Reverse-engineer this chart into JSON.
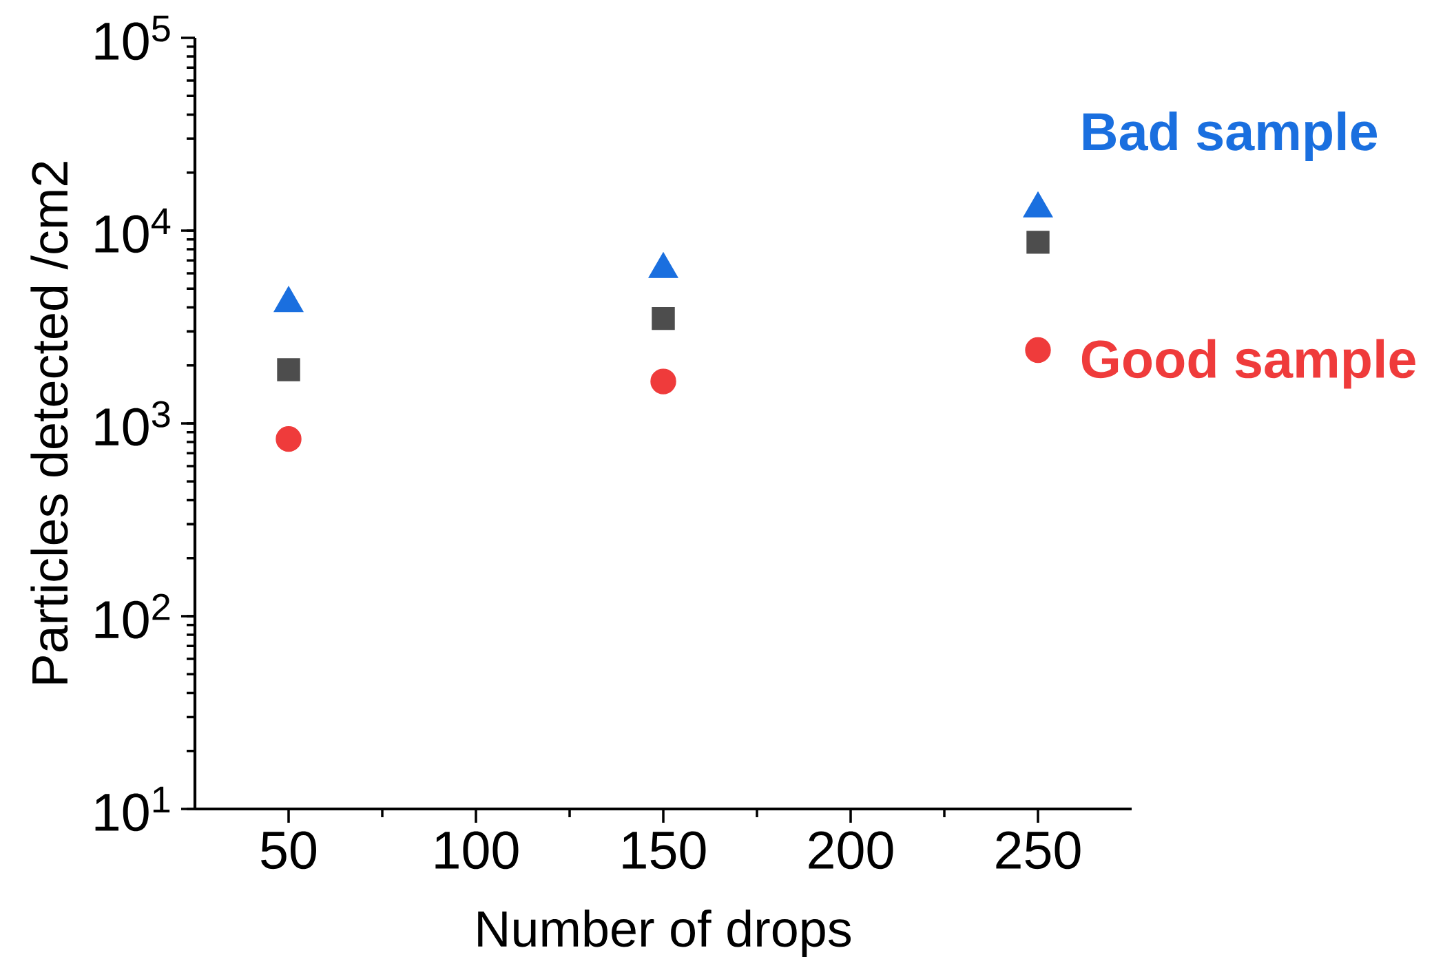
{
  "chart_data": {
    "type": "scatter",
    "xlabel": "Number of drops",
    "ylabel": "Particles detected  /cm2",
    "x": [
      50,
      150,
      250
    ],
    "xlim": [
      25,
      275
    ],
    "xticks": [
      50,
      100,
      150,
      200,
      250
    ],
    "ylim": [
      10,
      100000
    ],
    "yticks": [
      {
        "value": 10,
        "label": "10$^{1}$"
      },
      {
        "value": 100,
        "label": "10$^{2}$"
      },
      {
        "value": 1000,
        "label": "10$^{3}$"
      },
      {
        "value": 10000,
        "label": "10$^{4}$"
      },
      {
        "value": 100000,
        "label": "10$^{5}$"
      }
    ],
    "log": "y",
    "grid": false,
    "legend": "right",
    "series": [
      {
        "name": "Bad sample",
        "color": "#1a6fdf",
        "marker": "triangle",
        "values": [
          4200,
          6300,
          13000
        ]
      },
      {
        "color": "#4d4d4d",
        "marker": "square",
        "values": [
          1900,
          3500,
          8700
        ]
      },
      {
        "name": "Good sample",
        "color": "#ef3b3b",
        "marker": "circle",
        "values": [
          830,
          1650,
          2400
        ]
      }
    ]
  }
}
